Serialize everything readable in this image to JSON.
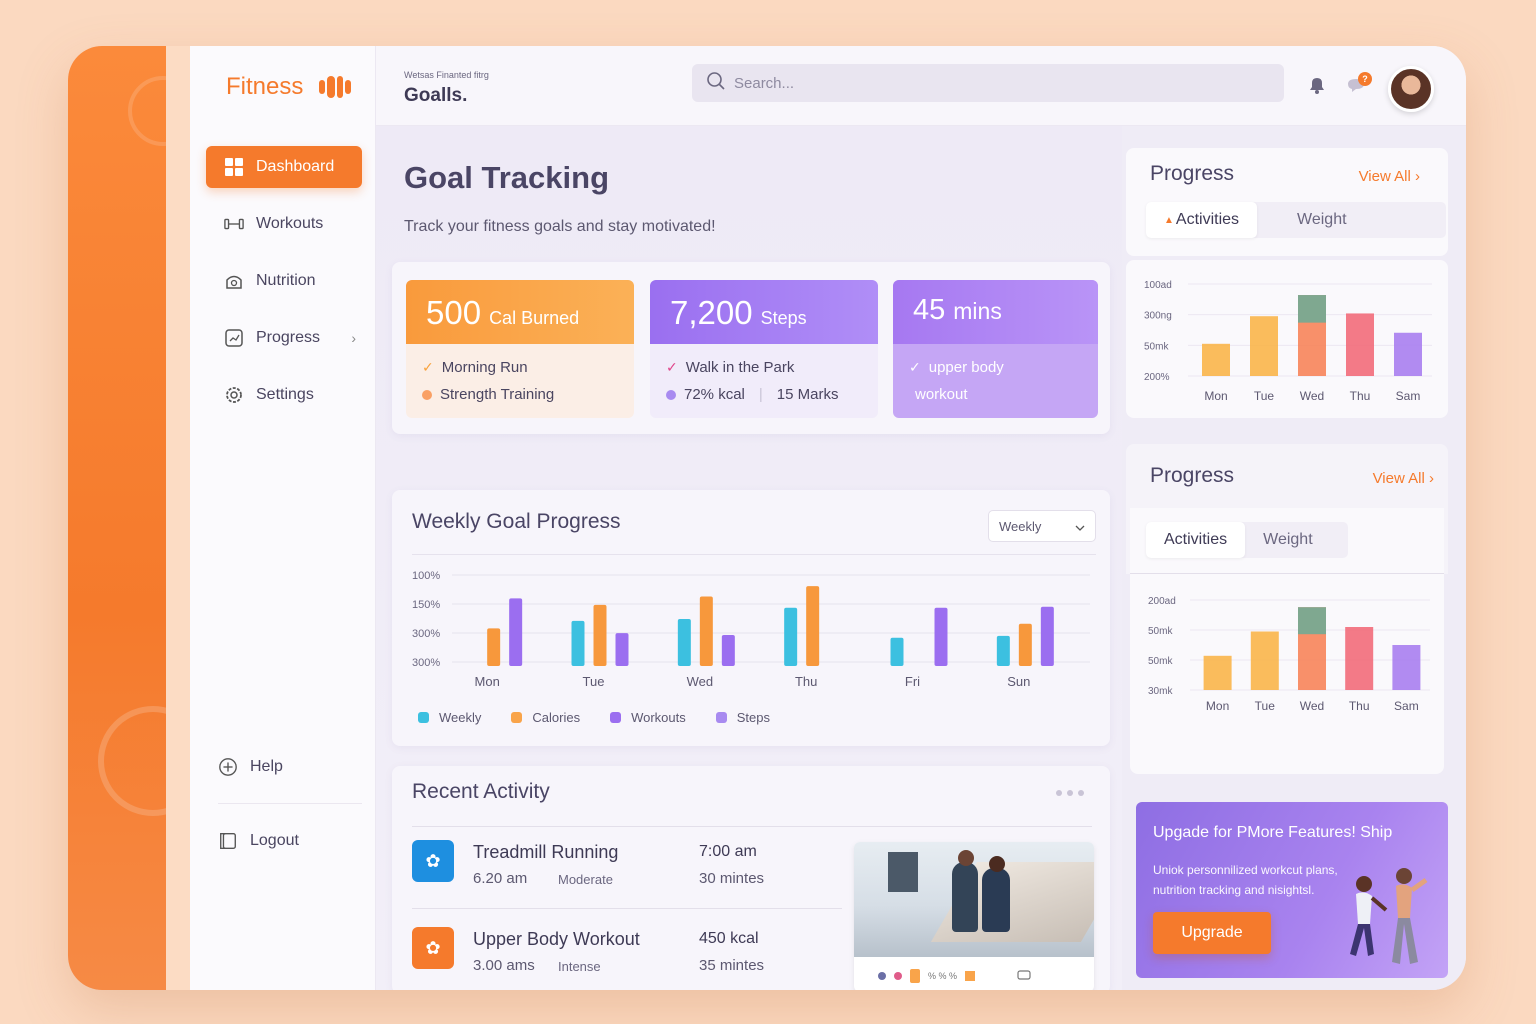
{
  "sidebar": {
    "brand": "Fitness",
    "nav": [
      {
        "label": "Dashboard",
        "icon": "grid-icon"
      },
      {
        "label": "Workouts",
        "icon": "dumbbell-icon"
      },
      {
        "label": "Nutrition",
        "icon": "nutrition-icon"
      },
      {
        "label": "Progress",
        "icon": "progress-icon"
      },
      {
        "label": "Settings",
        "icon": "gear-icon"
      }
    ],
    "bottom": [
      {
        "label": "Help",
        "icon": "plus-circle-icon"
      },
      {
        "label": "Logout",
        "icon": "logout-icon"
      }
    ]
  },
  "header": {
    "crumb_small": "Wetsas Finanted fitrg",
    "crumb_title": "Goalls.",
    "search_placeholder": "Search...",
    "notification_badge": "?"
  },
  "main": {
    "title": "Goal Tracking",
    "subtitle": "Track your fitness goals and stay motivated!",
    "stats": [
      {
        "value": "500",
        "unit": "Cal Burned",
        "line1": "Morning Run",
        "line2": "Strength Training"
      },
      {
        "value": "7,200",
        "unit": "Steps",
        "line1": "Walk in the Park",
        "line2a": "72% kcal",
        "line2b": "15 Marks"
      },
      {
        "value": "45",
        "unit": "mins",
        "line1": "upper body",
        "line2": "workout"
      }
    ],
    "weekly": {
      "title": "Weekly Goal Progress",
      "select": "Weekly",
      "legend": [
        "Weekly",
        "Calories",
        "Workouts",
        "Steps"
      ]
    },
    "recent": {
      "title": "Recent Activity",
      "items": [
        {
          "name": "Treadmill Running",
          "time": "6.20 am",
          "level": "Moderate",
          "v1": "7:00 am",
          "v2": "30 mintes"
        },
        {
          "name": "Upper Body Workout",
          "time": "3.00 ams",
          "level": "Intense",
          "v1": "450 kcal",
          "v2": "35 mintes"
        }
      ],
      "photo_caption": "% % %"
    }
  },
  "right": {
    "card1": {
      "title": "Progress",
      "view_all": "View All",
      "tab_a": "Activities",
      "tab_b": "Weight"
    },
    "card2": {
      "title": "Progress",
      "view_all": "View All",
      "tab_a": "Activities",
      "tab_b": "Weight"
    },
    "upgrade": {
      "title": "Upgade for PMore Features! Ship",
      "desc": "Uniok personnilized workcut plans, nutrition tracking and nisightsl.",
      "button": "Upgrade"
    }
  },
  "chart_data": [
    {
      "type": "bar",
      "title": "Weekly Goal Progress",
      "categories": [
        "Mon",
        "Tue",
        "Wed",
        "Thu",
        "Fri",
        "Sun"
      ],
      "y_tick_labels": [
        "100%",
        "150%",
        "300%",
        "300%"
      ],
      "series": [
        {
          "name": "Weekly",
          "color": "#3cc0e0",
          "values": [
            0,
            48,
            50,
            62,
            30,
            32
          ]
        },
        {
          "name": "Calories",
          "color": "#f7983c",
          "values": [
            40,
            65,
            74,
            85,
            0,
            45
          ]
        },
        {
          "name": "Workouts",
          "color": "#9b6ef0",
          "values": [
            72,
            35,
            33,
            0,
            62,
            63
          ]
        }
      ],
      "ylim": [
        0,
        100
      ]
    },
    {
      "type": "bar",
      "title": "Progress",
      "categories": [
        "Mon",
        "Tue",
        "Wed",
        "Thu",
        "Sam"
      ],
      "y_tick_labels": [
        "100ad",
        "300ng",
        "50mk",
        "200%"
      ],
      "values": [
        35,
        65,
        88,
        68,
        47
      ],
      "top_segment": [
        0,
        0,
        30,
        0,
        0
      ],
      "colors": [
        "#f9b54a",
        "#f9b54a",
        "#f7845a",
        "#f26b7a",
        "#a87ef0"
      ],
      "top_color": "#7fa890",
      "ylim": [
        0,
        100
      ]
    },
    {
      "type": "bar",
      "title": "Progress",
      "categories": [
        "Mon",
        "Tue",
        "Wed",
        "Thu",
        "Sam"
      ],
      "y_tick_labels": [
        "200ad",
        "50mk",
        "50mk",
        "30mk"
      ],
      "values": [
        38,
        65,
        92,
        70,
        50
      ],
      "top_segment": [
        0,
        0,
        30,
        0,
        0
      ],
      "colors": [
        "#f9b54a",
        "#f9b54a",
        "#f7845a",
        "#f26b7a",
        "#a87ef0"
      ],
      "top_color": "#7fa890",
      "ylim": [
        0,
        100
      ]
    }
  ]
}
